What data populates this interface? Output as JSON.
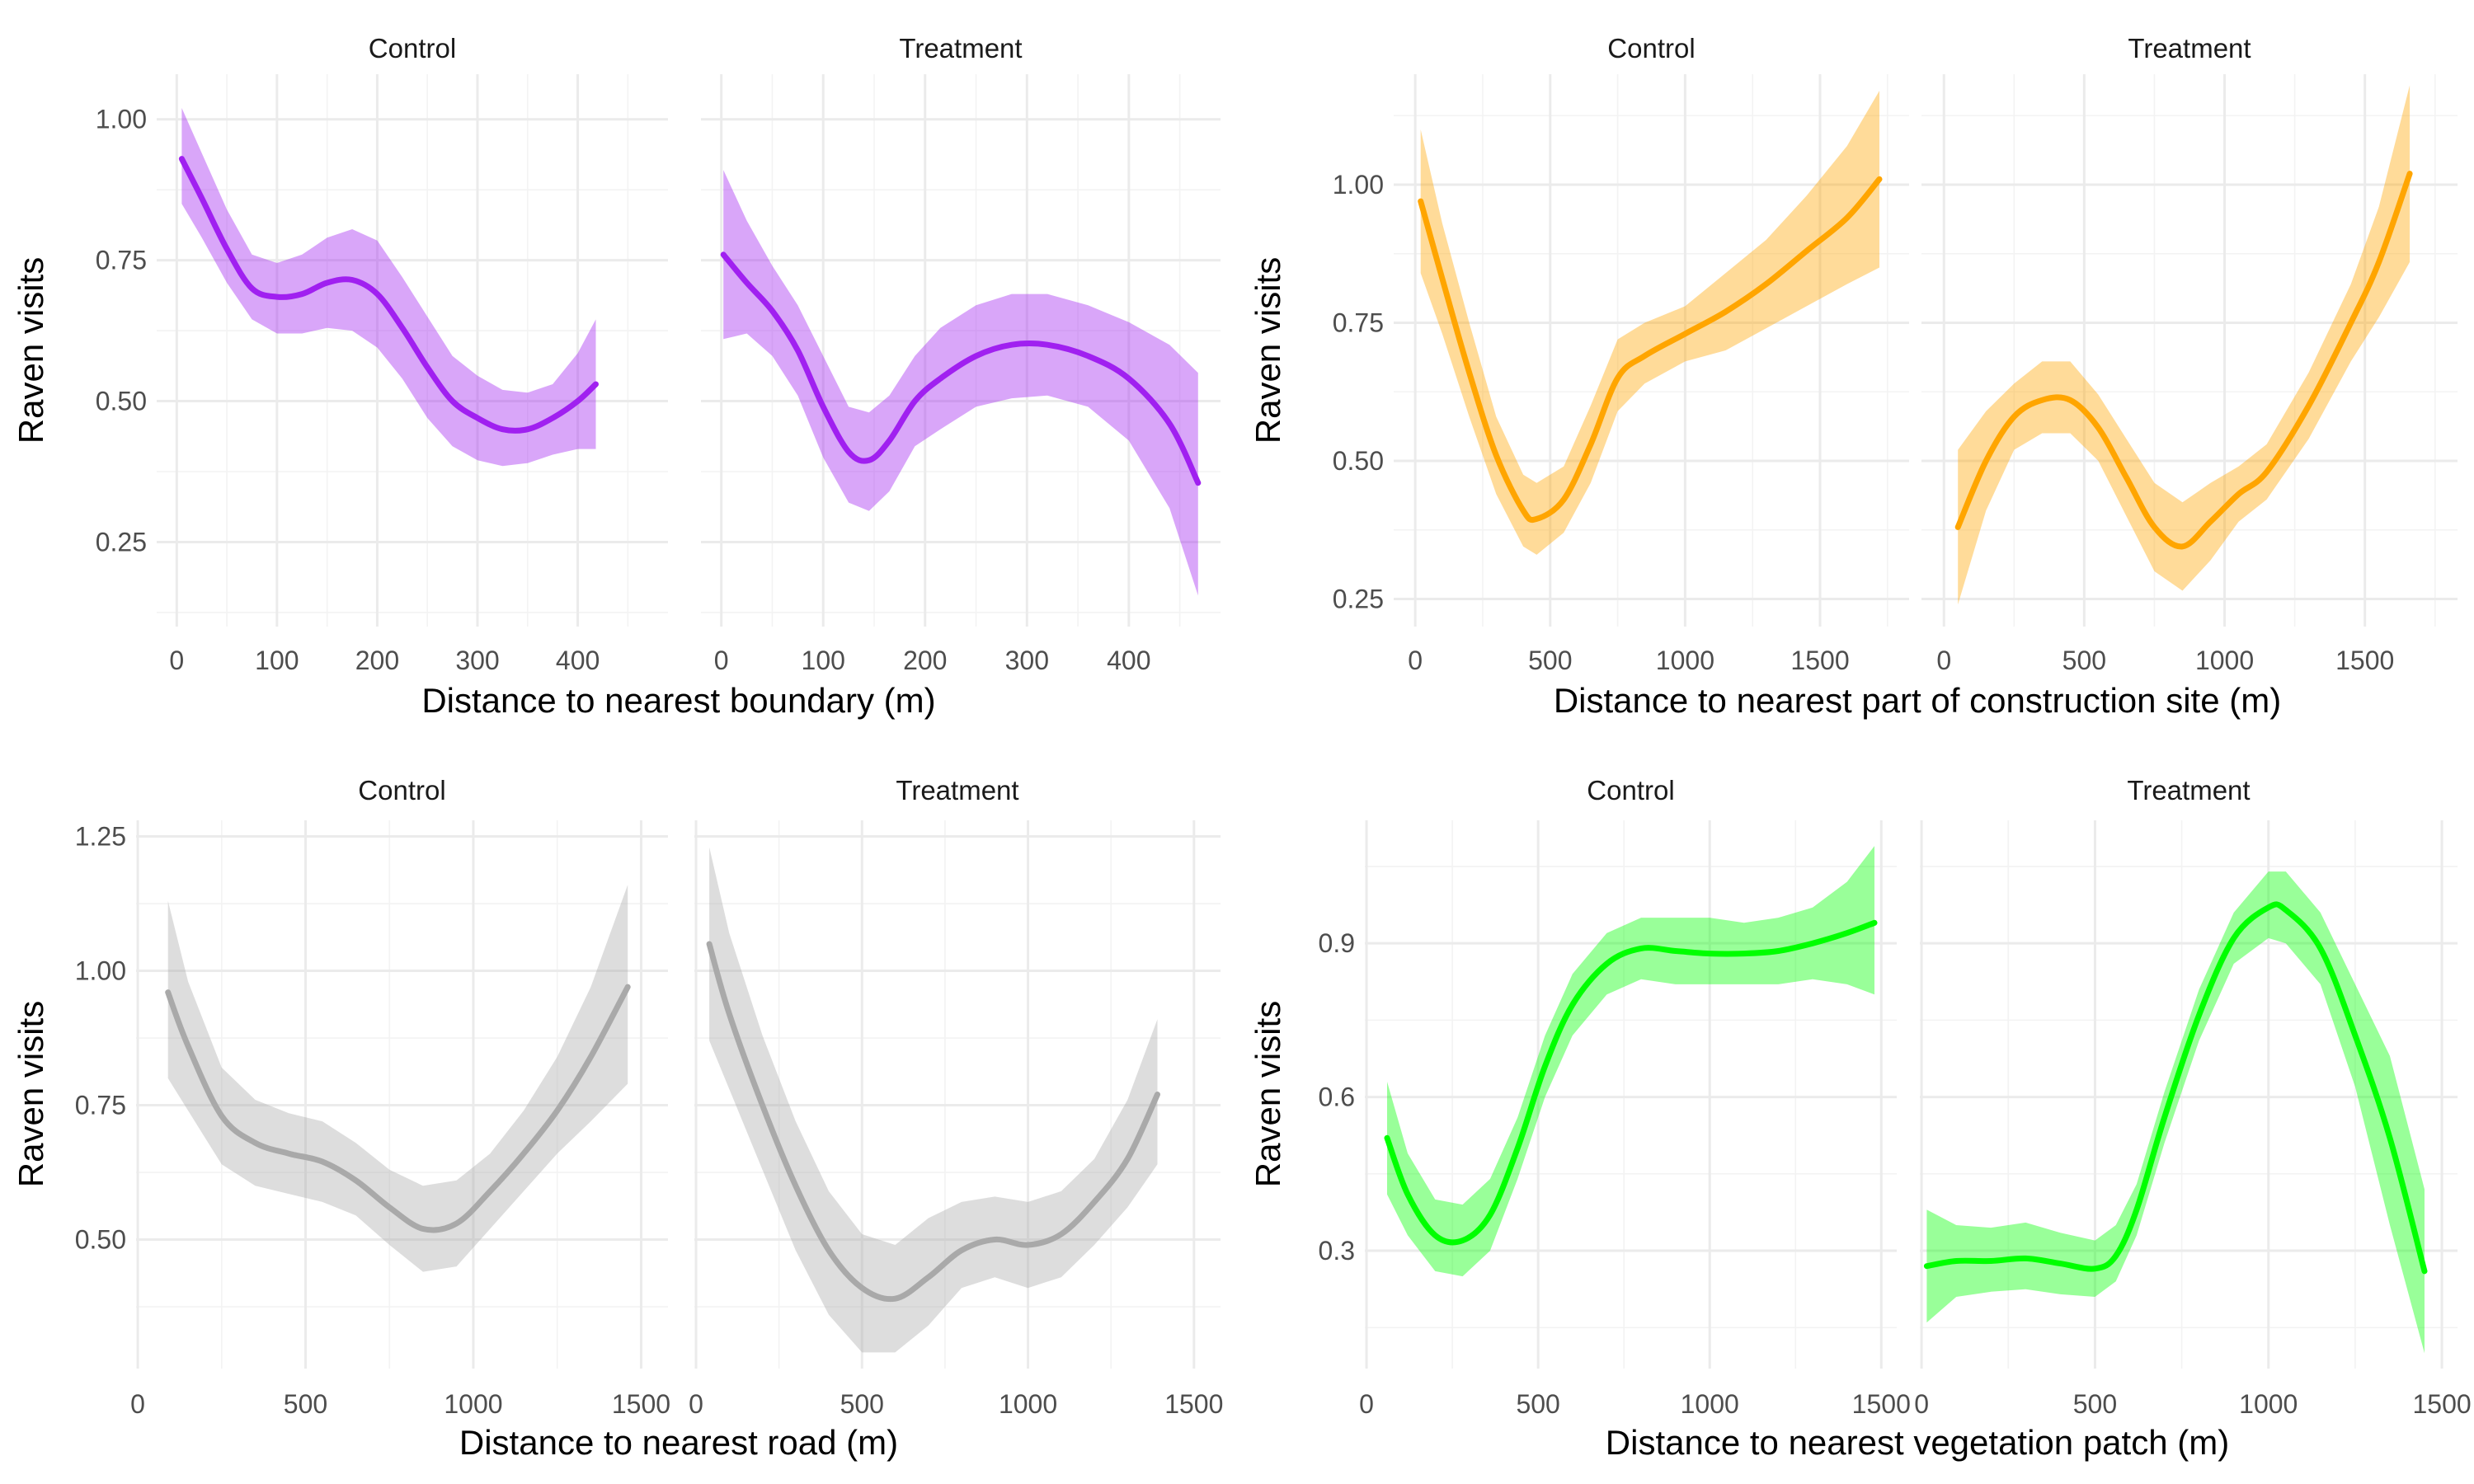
{
  "chart_data": [
    {
      "type": "line",
      "title": "",
      "xlabel": "Distance to nearest boundary (m)",
      "ylabel": "Raven visits",
      "xlim": [
        -20,
        490
      ],
      "ylim": [
        0.1,
        1.08
      ],
      "xticks": [
        0,
        100,
        200,
        300,
        400
      ],
      "yticks": [
        0.25,
        0.5,
        0.75,
        1.0
      ],
      "ytick_labels": [
        "0.25",
        "0.50",
        "0.75",
        "1.00"
      ],
      "grid": true,
      "color": "#A020F0",
      "band": "confidence interval",
      "facets": [
        {
          "name": "Control",
          "xticks": [
            0,
            100,
            200,
            300,
            400
          ],
          "x": [
            5,
            25,
            50,
            75,
            100,
            125,
            150,
            175,
            200,
            225,
            250,
            275,
            300,
            325,
            350,
            375,
            400,
            418
          ],
          "y": [
            0.93,
            0.86,
            0.77,
            0.7,
            0.685,
            0.69,
            0.71,
            0.715,
            0.69,
            0.63,
            0.56,
            0.5,
            0.47,
            0.45,
            0.45,
            0.47,
            0.5,
            0.53
          ],
          "lower": [
            0.85,
            0.79,
            0.71,
            0.645,
            0.62,
            0.62,
            0.63,
            0.625,
            0.595,
            0.54,
            0.47,
            0.42,
            0.395,
            0.385,
            0.39,
            0.405,
            0.415,
            0.415
          ],
          "upper": [
            1.02,
            0.94,
            0.84,
            0.76,
            0.745,
            0.76,
            0.79,
            0.805,
            0.785,
            0.72,
            0.65,
            0.58,
            0.545,
            0.52,
            0.515,
            0.53,
            0.585,
            0.645
          ]
        },
        {
          "name": "Treatment",
          "xticks": [
            0,
            100,
            200,
            300,
            400
          ],
          "x": [
            2,
            25,
            50,
            75,
            100,
            125,
            145,
            165,
            190,
            215,
            250,
            285,
            320,
            360,
            400,
            440,
            468
          ],
          "y": [
            0.76,
            0.71,
            0.66,
            0.59,
            0.49,
            0.41,
            0.395,
            0.43,
            0.5,
            0.54,
            0.58,
            0.6,
            0.6,
            0.58,
            0.54,
            0.46,
            0.355
          ],
          "lower": [
            0.61,
            0.62,
            0.58,
            0.51,
            0.4,
            0.32,
            0.305,
            0.34,
            0.42,
            0.45,
            0.49,
            0.505,
            0.51,
            0.49,
            0.43,
            0.31,
            0.155
          ],
          "upper": [
            0.91,
            0.82,
            0.74,
            0.67,
            0.58,
            0.49,
            0.48,
            0.51,
            0.58,
            0.63,
            0.67,
            0.69,
            0.69,
            0.67,
            0.64,
            0.6,
            0.55
          ]
        }
      ]
    },
    {
      "type": "line",
      "title": "",
      "xlabel": "Distance to nearest part of construction site (m)",
      "ylabel": "Raven visits",
      "xlim": [
        -80,
        1830
      ],
      "ylim": [
        0.2,
        1.2
      ],
      "xticks": [
        0,
        500,
        1000,
        1500
      ],
      "yticks": [
        0.25,
        0.5,
        0.75,
        1.0
      ],
      "ytick_labels": [
        "0.25",
        "0.50",
        "0.75",
        "1.00"
      ],
      "grid": true,
      "color": "#FFA500",
      "band": "confidence interval",
      "facets": [
        {
          "name": "Control",
          "xticks": [
            0,
            500,
            1000,
            1500
          ],
          "x": [
            20,
            100,
            200,
            300,
            400,
            450,
            550,
            650,
            750,
            850,
            1000,
            1150,
            1300,
            1450,
            1600,
            1720
          ],
          "y": [
            0.97,
            0.83,
            0.66,
            0.51,
            0.41,
            0.395,
            0.43,
            0.53,
            0.65,
            0.69,
            0.73,
            0.77,
            0.82,
            0.88,
            0.94,
            1.01
          ],
          "lower": [
            0.84,
            0.73,
            0.58,
            0.44,
            0.345,
            0.33,
            0.37,
            0.46,
            0.59,
            0.64,
            0.68,
            0.7,
            0.74,
            0.78,
            0.82,
            0.85
          ],
          "upper": [
            1.1,
            0.93,
            0.75,
            0.58,
            0.475,
            0.46,
            0.49,
            0.6,
            0.72,
            0.75,
            0.78,
            0.84,
            0.9,
            0.98,
            1.07,
            1.17
          ]
        },
        {
          "name": "Treatment",
          "xticks": [
            0,
            500,
            1000,
            1500
          ],
          "x": [
            50,
            150,
            250,
            350,
            450,
            550,
            650,
            750,
            850,
            950,
            1050,
            1150,
            1300,
            1450,
            1550,
            1660
          ],
          "y": [
            0.38,
            0.5,
            0.58,
            0.61,
            0.61,
            0.56,
            0.47,
            0.38,
            0.345,
            0.39,
            0.44,
            0.48,
            0.6,
            0.75,
            0.86,
            1.02
          ],
          "lower": [
            0.24,
            0.41,
            0.52,
            0.55,
            0.55,
            0.5,
            0.4,
            0.3,
            0.265,
            0.32,
            0.39,
            0.43,
            0.54,
            0.68,
            0.76,
            0.86
          ],
          "upper": [
            0.52,
            0.59,
            0.64,
            0.68,
            0.68,
            0.62,
            0.54,
            0.46,
            0.425,
            0.46,
            0.49,
            0.53,
            0.66,
            0.82,
            0.96,
            1.18
          ]
        }
      ]
    },
    {
      "type": "line",
      "title": "",
      "xlabel": "Distance to nearest road (m)",
      "ylabel": "Raven visits",
      "xlim": [
        -5,
        1580
      ],
      "ylim": [
        0.26,
        1.28
      ],
      "xticks": [
        0,
        500,
        1000,
        1500
      ],
      "yticks": [
        0.5,
        0.75,
        1.0,
        1.25
      ],
      "ytick_labels": [
        "0.50",
        "0.75",
        "1.00",
        "1.25"
      ],
      "grid": true,
      "color": "#A9A9A9",
      "band": "confidence interval",
      "facets": [
        {
          "name": "Control",
          "xticks": [
            0,
            500,
            1000,
            1500
          ],
          "x": [
            90,
            150,
            250,
            350,
            450,
            550,
            650,
            750,
            850,
            950,
            1050,
            1150,
            1250,
            1350,
            1460
          ],
          "y": [
            0.96,
            0.86,
            0.73,
            0.68,
            0.66,
            0.645,
            0.61,
            0.56,
            0.52,
            0.53,
            0.59,
            0.66,
            0.74,
            0.84,
            0.97
          ],
          "lower": [
            0.8,
            0.74,
            0.64,
            0.6,
            0.585,
            0.57,
            0.545,
            0.49,
            0.44,
            0.45,
            0.52,
            0.59,
            0.66,
            0.72,
            0.79
          ],
          "upper": [
            1.13,
            0.98,
            0.82,
            0.76,
            0.735,
            0.72,
            0.68,
            0.63,
            0.6,
            0.61,
            0.66,
            0.74,
            0.84,
            0.97,
            1.16
          ]
        },
        {
          "name": "Treatment",
          "xticks": [
            0,
            500,
            1000,
            1500
          ],
          "x": [
            40,
            100,
            200,
            300,
            400,
            500,
            600,
            700,
            800,
            900,
            1000,
            1100,
            1200,
            1300,
            1390
          ],
          "y": [
            1.05,
            0.92,
            0.75,
            0.6,
            0.48,
            0.41,
            0.39,
            0.43,
            0.48,
            0.5,
            0.49,
            0.51,
            0.57,
            0.65,
            0.77
          ],
          "lower": [
            0.87,
            0.78,
            0.63,
            0.48,
            0.36,
            0.29,
            0.29,
            0.34,
            0.41,
            0.43,
            0.41,
            0.43,
            0.49,
            0.56,
            0.64
          ],
          "upper": [
            1.23,
            1.07,
            0.88,
            0.72,
            0.59,
            0.51,
            0.49,
            0.54,
            0.57,
            0.58,
            0.57,
            0.59,
            0.65,
            0.76,
            0.91
          ]
        }
      ]
    },
    {
      "type": "line",
      "title": "",
      "xlabel": "Distance to nearest vegetation patch (m)",
      "ylabel": "Raven visits",
      "xlim": [
        -5,
        1545
      ],
      "ylim": [
        0.07,
        1.14
      ],
      "xticks": [
        0,
        500,
        1000,
        1500
      ],
      "yticks": [
        0.3,
        0.6,
        0.9
      ],
      "ytick_labels": [
        "0.3",
        "0.6",
        "0.9"
      ],
      "grid": true,
      "color": "#00FF00",
      "band": "confidence interval",
      "facets": [
        {
          "name": "Control",
          "xticks": [
            0,
            500,
            1000,
            1500
          ],
          "x": [
            60,
            120,
            200,
            280,
            360,
            440,
            520,
            600,
            700,
            800,
            900,
            1000,
            1100,
            1200,
            1300,
            1400,
            1480
          ],
          "y": [
            0.52,
            0.41,
            0.33,
            0.32,
            0.37,
            0.5,
            0.66,
            0.78,
            0.86,
            0.89,
            0.885,
            0.88,
            0.88,
            0.885,
            0.9,
            0.92,
            0.94
          ],
          "lower": [
            0.41,
            0.33,
            0.26,
            0.25,
            0.3,
            0.44,
            0.6,
            0.72,
            0.8,
            0.83,
            0.82,
            0.82,
            0.82,
            0.82,
            0.83,
            0.82,
            0.8
          ],
          "upper": [
            0.63,
            0.49,
            0.4,
            0.39,
            0.44,
            0.56,
            0.72,
            0.84,
            0.92,
            0.95,
            0.95,
            0.95,
            0.94,
            0.95,
            0.97,
            1.02,
            1.09
          ]
        },
        {
          "name": "Treatment",
          "xticks": [
            0,
            500,
            1000,
            1500
          ],
          "x": [
            15,
            100,
            200,
            300,
            400,
            500,
            560,
            620,
            700,
            800,
            900,
            1000,
            1050,
            1150,
            1250,
            1350,
            1450
          ],
          "y": [
            0.27,
            0.28,
            0.28,
            0.285,
            0.275,
            0.265,
            0.29,
            0.38,
            0.56,
            0.76,
            0.91,
            0.97,
            0.965,
            0.89,
            0.72,
            0.52,
            0.26
          ],
          "lower": [
            0.16,
            0.21,
            0.22,
            0.225,
            0.215,
            0.21,
            0.24,
            0.33,
            0.51,
            0.71,
            0.86,
            0.91,
            0.9,
            0.82,
            0.62,
            0.35,
            0.1
          ],
          "upper": [
            0.38,
            0.35,
            0.345,
            0.355,
            0.335,
            0.32,
            0.35,
            0.43,
            0.61,
            0.81,
            0.96,
            1.04,
            1.04,
            0.96,
            0.82,
            0.68,
            0.42
          ]
        }
      ]
    }
  ]
}
